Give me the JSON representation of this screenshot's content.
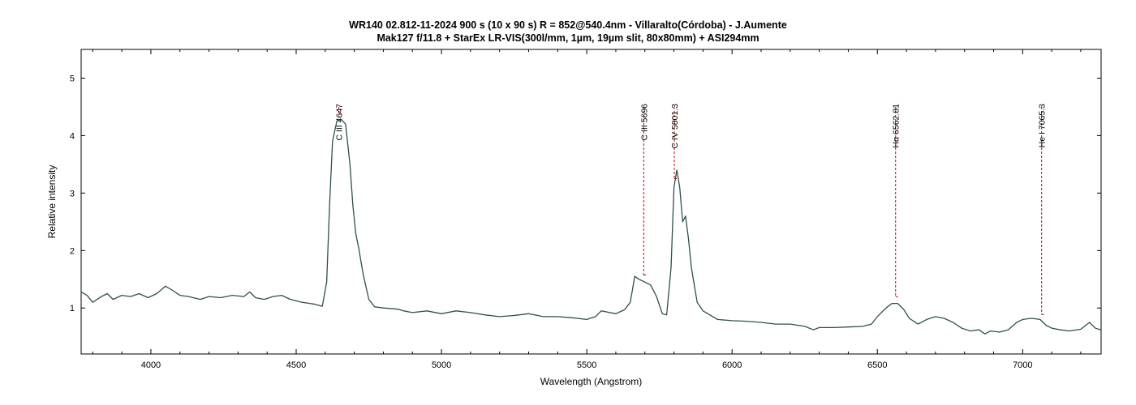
{
  "title_line1": "WR140  02.812-11-2024  900 s (10 x 90 s)  R = 852@540.4nm - Villaralto(Córdoba) - J.Aumente",
  "title_line2": "Mak127 f/11.8 + StarEx LR-VIS(300l/mm, 1µm, 19µm slit, 80x80mm) + ASI294mm",
  "chart_data": {
    "type": "line",
    "title": "WR140  02.812-11-2024  900 s (10 x 90 s)  R = 852@540.4nm - Villaralto(Córdoba) - J.Aumente",
    "subtitle": "Mak127 f/11.8 + StarEx LR-VIS(300l/mm, 1µm, 19µm slit, 80x80mm) + ASI294mm",
    "xlabel": "Wavelength (Angstrom)",
    "ylabel": "Relative intensity",
    "xlim": [
      3760,
      7270
    ],
    "ylim": [
      0.2,
      5.5
    ],
    "xticks": [
      4000,
      4500,
      5000,
      5500,
      6000,
      6500,
      7000
    ],
    "yticks": [
      1,
      2,
      3,
      4,
      5
    ],
    "grid": false,
    "legend": "none",
    "line_color": "#2f4f4f",
    "marker_color": "#cc0000",
    "series": [
      {
        "x": [
          3760,
          3780,
          3800,
          3830,
          3850,
          3870,
          3900,
          3930,
          3960,
          3990,
          4020,
          4050,
          4070,
          4100,
          4130,
          4170,
          4200,
          4240,
          4280,
          4320,
          4340,
          4360,
          4390,
          4420,
          4450,
          4480,
          4520,
          4560,
          4590,
          4605,
          4615,
          4625,
          4640,
          4655,
          4670,
          4685,
          4695,
          4705,
          4715,
          4730,
          4750,
          4770,
          4800,
          4850,
          4870,
          4900,
          4950,
          5000,
          5050,
          5100,
          5150,
          5200,
          5250,
          5300,
          5350,
          5400,
          5450,
          5500,
          5530,
          5550,
          5580,
          5600,
          5630,
          5650,
          5665,
          5680,
          5700,
          5720,
          5740,
          5760,
          5775,
          5790,
          5800,
          5810,
          5820,
          5830,
          5840,
          5850,
          5860,
          5870,
          5880,
          5900,
          5950,
          6000,
          6050,
          6100,
          6150,
          6200,
          6250,
          6280,
          6300,
          6350,
          6400,
          6450,
          6480,
          6500,
          6530,
          6550,
          6570,
          6590,
          6610,
          6640,
          6670,
          6700,
          6730,
          6760,
          6790,
          6820,
          6850,
          6870,
          6890,
          6920,
          6950,
          6980,
          7000,
          7030,
          7060,
          7080,
          7100,
          7130,
          7160,
          7200,
          7230,
          7250,
          7270
        ],
        "y": [
          1.28,
          1.22,
          1.1,
          1.2,
          1.25,
          1.15,
          1.22,
          1.2,
          1.25,
          1.18,
          1.25,
          1.38,
          1.32,
          1.22,
          1.2,
          1.15,
          1.2,
          1.18,
          1.22,
          1.2,
          1.28,
          1.18,
          1.15,
          1.2,
          1.22,
          1.15,
          1.1,
          1.07,
          1.03,
          1.45,
          2.8,
          3.9,
          4.25,
          4.28,
          4.2,
          3.5,
          2.8,
          2.3,
          2.05,
          1.6,
          1.15,
          1.02,
          1.0,
          0.98,
          0.95,
          0.92,
          0.95,
          0.9,
          0.95,
          0.92,
          0.88,
          0.85,
          0.87,
          0.9,
          0.85,
          0.85,
          0.83,
          0.8,
          0.85,
          0.95,
          0.92,
          0.9,
          0.97,
          1.1,
          1.55,
          1.5,
          1.45,
          1.4,
          1.2,
          0.9,
          0.88,
          1.7,
          3.1,
          3.4,
          3.1,
          2.5,
          2.6,
          2.2,
          1.7,
          1.4,
          1.1,
          0.95,
          0.8,
          0.78,
          0.77,
          0.75,
          0.72,
          0.72,
          0.68,
          0.62,
          0.66,
          0.66,
          0.67,
          0.68,
          0.72,
          0.85,
          1.0,
          1.08,
          1.08,
          0.98,
          0.82,
          0.72,
          0.8,
          0.85,
          0.82,
          0.75,
          0.65,
          0.6,
          0.62,
          0.55,
          0.6,
          0.58,
          0.62,
          0.75,
          0.8,
          0.82,
          0.8,
          0.7,
          0.65,
          0.62,
          0.6,
          0.63,
          0.75,
          0.65,
          0.62
        ]
      }
    ],
    "annotations": [
      {
        "label": "C III 4647",
        "x": 4647
      },
      {
        "label": "C III 5696",
        "x": 5696
      },
      {
        "label": "C IV 5801.3",
        "x": 5801.3
      },
      {
        "label": "Hα 6562.81",
        "x": 6562.81
      },
      {
        "label": "He I 7065.3",
        "x": 7065.3
      }
    ]
  }
}
